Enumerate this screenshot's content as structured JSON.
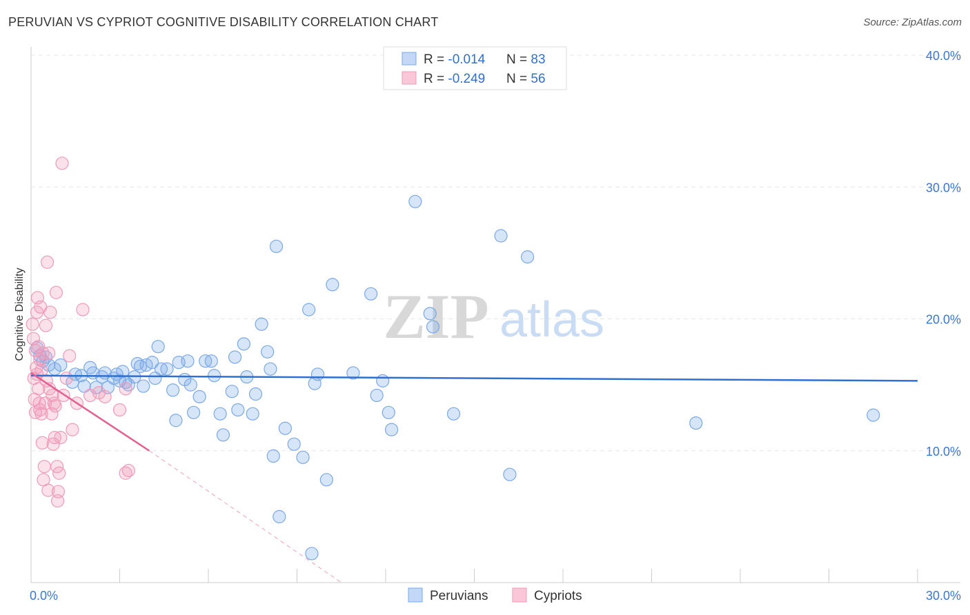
{
  "header": {
    "title": "PERUVIAN VS CYPRIOT COGNITIVE DISABILITY CORRELATION CHART",
    "source": "Source: ZipAtlas.com"
  },
  "watermark": {
    "zip": "ZIP",
    "atlas": "atlas"
  },
  "legend_box": {
    "rows": [
      {
        "r_label": "R = ",
        "r_value": "-0.014",
        "n_label": "N = ",
        "n_value": "83",
        "color": "#7aa8e8"
      },
      {
        "r_label": "R = ",
        "r_value": "-0.249",
        "n_label": "N = ",
        "n_value": "56",
        "color": "#f09ab8"
      }
    ]
  },
  "chart_data": {
    "type": "scatter",
    "title": "PERUVIAN VS CYPRIOT COGNITIVE DISABILITY CORRELATION CHART",
    "xlabel": "",
    "ylabel": "Cognitive Disability",
    "xlim": [
      0,
      30
    ],
    "ylim": [
      0,
      40
    ],
    "x_tick_labels": [
      "0.0%",
      "30.0%"
    ],
    "y_ticks": [
      10,
      20,
      30,
      40
    ],
    "y_tick_labels": [
      "10.0%",
      "20.0%",
      "30.0%",
      "40.0%"
    ],
    "grid": true,
    "legend": [
      "Peruvians",
      "Cypriots"
    ],
    "series": [
      {
        "name": "Peruvians",
        "color": "#7aa8e8",
        "line_color": "#2f6fcf",
        "trend": {
          "x": [
            0,
            30
          ],
          "y": [
            15.7,
            15.3
          ],
          "dashed_extension": false
        },
        "points": [
          [
            0.2,
            17.8
          ],
          [
            0.3,
            17.2
          ],
          [
            0.4,
            16.8
          ],
          [
            0.5,
            17.1
          ],
          [
            0.6,
            16.5
          ],
          [
            0.8,
            16.2
          ],
          [
            1.0,
            16.5
          ],
          [
            1.4,
            15.2
          ],
          [
            1.5,
            15.8
          ],
          [
            1.7,
            15.7
          ],
          [
            1.8,
            14.9
          ],
          [
            2.0,
            16.3
          ],
          [
            2.1,
            15.9
          ],
          [
            2.2,
            14.8
          ],
          [
            2.4,
            15.6
          ],
          [
            2.5,
            15.9
          ],
          [
            2.6,
            14.8
          ],
          [
            2.8,
            15.5
          ],
          [
            2.9,
            15.8
          ],
          [
            3.0,
            15.3
          ],
          [
            3.1,
            16.0
          ],
          [
            3.2,
            15.2
          ],
          [
            3.3,
            15.0
          ],
          [
            3.5,
            15.6
          ],
          [
            3.6,
            16.6
          ],
          [
            3.7,
            16.4
          ],
          [
            3.8,
            14.9
          ],
          [
            3.9,
            16.5
          ],
          [
            4.1,
            16.7
          ],
          [
            4.2,
            15.5
          ],
          [
            4.3,
            17.9
          ],
          [
            4.4,
            16.2
          ],
          [
            4.6,
            16.2
          ],
          [
            4.8,
            14.6
          ],
          [
            4.9,
            12.3
          ],
          [
            5.0,
            16.7
          ],
          [
            5.2,
            15.4
          ],
          [
            5.3,
            16.8
          ],
          [
            5.4,
            15.0
          ],
          [
            5.5,
            12.9
          ],
          [
            5.7,
            14.1
          ],
          [
            5.9,
            16.8
          ],
          [
            6.1,
            16.8
          ],
          [
            6.2,
            15.7
          ],
          [
            6.4,
            12.8
          ],
          [
            6.5,
            11.2
          ],
          [
            6.8,
            14.5
          ],
          [
            6.9,
            17.1
          ],
          [
            7.0,
            13.1
          ],
          [
            7.2,
            18.1
          ],
          [
            7.3,
            15.6
          ],
          [
            7.5,
            12.8
          ],
          [
            7.6,
            14.3
          ],
          [
            7.8,
            19.6
          ],
          [
            8.0,
            17.5
          ],
          [
            8.1,
            16.2
          ],
          [
            8.2,
            9.6
          ],
          [
            8.3,
            25.5
          ],
          [
            8.4,
            5.0
          ],
          [
            8.6,
            11.7
          ],
          [
            8.9,
            10.5
          ],
          [
            9.2,
            9.5
          ],
          [
            9.4,
            20.7
          ],
          [
            9.5,
            2.2
          ],
          [
            9.6,
            15.1
          ],
          [
            9.7,
            15.8
          ],
          [
            10.0,
            7.8
          ],
          [
            10.2,
            22.6
          ],
          [
            10.9,
            15.9
          ],
          [
            11.5,
            21.9
          ],
          [
            11.7,
            14.2
          ],
          [
            11.9,
            15.3
          ],
          [
            12.1,
            12.9
          ],
          [
            12.2,
            11.6
          ],
          [
            13.0,
            28.9
          ],
          [
            13.5,
            20.4
          ],
          [
            13.6,
            19.4
          ],
          [
            14.3,
            12.8
          ],
          [
            15.9,
            26.3
          ],
          [
            16.2,
            8.2
          ],
          [
            16.8,
            24.7
          ],
          [
            22.5,
            12.1
          ],
          [
            28.5,
            12.7
          ]
        ]
      },
      {
        "name": "Cypriots",
        "color": "#f09ab8",
        "line_color": "#e0608f",
        "trend": {
          "x": [
            0,
            4.0
          ],
          "y": [
            15.9,
            10.0
          ],
          "dashed_extension": true,
          "dash_to": [
            10.5,
            0
          ]
        },
        "points": [
          [
            0.05,
            19.6
          ],
          [
            0.08,
            18.5
          ],
          [
            0.1,
            15.5
          ],
          [
            0.12,
            13.9
          ],
          [
            0.15,
            17.6
          ],
          [
            0.15,
            12.9
          ],
          [
            0.18,
            16.3
          ],
          [
            0.2,
            20.5
          ],
          [
            0.2,
            15.8
          ],
          [
            0.22,
            21.6
          ],
          [
            0.25,
            17.9
          ],
          [
            0.25,
            14.7
          ],
          [
            0.28,
            13.6
          ],
          [
            0.3,
            16.9
          ],
          [
            0.3,
            13.1
          ],
          [
            0.32,
            20.9
          ],
          [
            0.35,
            12.8
          ],
          [
            0.35,
            16.1
          ],
          [
            0.38,
            10.6
          ],
          [
            0.4,
            17.4
          ],
          [
            0.42,
            7.8
          ],
          [
            0.45,
            8.8
          ],
          [
            0.48,
            13.6
          ],
          [
            0.5,
            19.5
          ],
          [
            0.52,
            15.3
          ],
          [
            0.55,
            24.3
          ],
          [
            0.58,
            7.0
          ],
          [
            0.6,
            17.4
          ],
          [
            0.62,
            14.7
          ],
          [
            0.65,
            20.5
          ],
          [
            0.7,
            12.8
          ],
          [
            0.72,
            14.2
          ],
          [
            0.75,
            10.5
          ],
          [
            0.78,
            13.6
          ],
          [
            0.8,
            11.0
          ],
          [
            0.82,
            13.4
          ],
          [
            0.85,
            22.0
          ],
          [
            0.88,
            8.8
          ],
          [
            0.9,
            6.2
          ],
          [
            0.92,
            6.9
          ],
          [
            0.95,
            8.3
          ],
          [
            1.0,
            11.0
          ],
          [
            1.05,
            31.8
          ],
          [
            1.1,
            14.2
          ],
          [
            1.2,
            15.5
          ],
          [
            1.3,
            17.2
          ],
          [
            1.4,
            11.6
          ],
          [
            1.55,
            13.6
          ],
          [
            1.75,
            20.7
          ],
          [
            2.0,
            14.2
          ],
          [
            2.3,
            14.4
          ],
          [
            2.5,
            14.1
          ],
          [
            3.0,
            13.1
          ],
          [
            3.2,
            8.3
          ],
          [
            3.3,
            8.5
          ],
          [
            3.2,
            14.7
          ]
        ]
      }
    ]
  }
}
